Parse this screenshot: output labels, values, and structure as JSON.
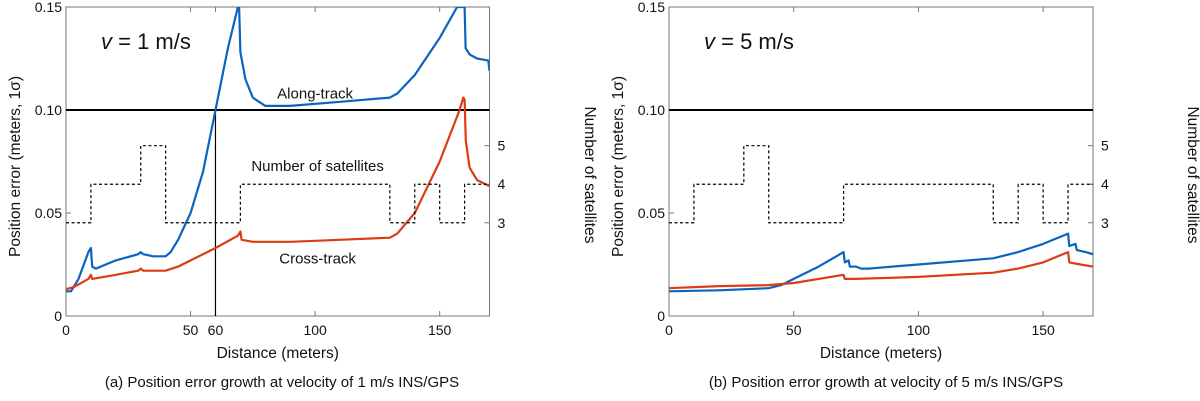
{
  "colors": {
    "along_track": "#0a64c0",
    "cross_track": "#dc3c14",
    "threshold": "#000000",
    "satellites": "#000000"
  },
  "chart_data": [
    {
      "type": "line",
      "panel": "a",
      "caption": "(a) Position error growth at velocity of 1 m/s INS/GPS",
      "velocity_label": {
        "italic": "v",
        "rest": " = 1 m/s"
      },
      "xlabel": "Distance (meters)",
      "ylabel": "Position error (meters, 1σ)",
      "y2label": "Number of satellites",
      "xlim": [
        0,
        170
      ],
      "ylim": [
        0,
        0.15
      ],
      "y2lim": [
        0.58,
        8.6
      ],
      "xticks": [
        0,
        50,
        60,
        100,
        150
      ],
      "yticks": [
        0,
        0.05,
        0.1,
        0.15
      ],
      "ytick_labels": [
        "0",
        "0.05",
        "0.10",
        "0.15"
      ],
      "y2ticks": [
        3,
        4,
        5
      ],
      "grid": false,
      "threshold": 0.1,
      "marker_x": 60,
      "annotations": {
        "along": "Along-track",
        "cross": "Cross-track",
        "sats": "Number of satellites"
      },
      "series": [
        {
          "name": "Along-track",
          "x": [
            0,
            2,
            5,
            9,
            10,
            10.5,
            12,
            20,
            29,
            30,
            31,
            35,
            40,
            42,
            45,
            50,
            55,
            60,
            65,
            69,
            69.5,
            70,
            72,
            75,
            80,
            90,
            110,
            130,
            133,
            140,
            150,
            157,
            160,
            160.4,
            162,
            165,
            169.5,
            170
          ],
          "y": [
            0.012,
            0.012,
            0.018,
            0.031,
            0.033,
            0.024,
            0.023,
            0.027,
            0.03,
            0.031,
            0.03,
            0.029,
            0.029,
            0.031,
            0.037,
            0.05,
            0.07,
            0.1,
            0.13,
            0.15,
            0.15,
            0.128,
            0.115,
            0.106,
            0.102,
            0.102,
            0.104,
            0.106,
            0.108,
            0.117,
            0.135,
            0.15,
            0.15,
            0.13,
            0.127,
            0.125,
            0.124,
            0.119
          ]
        },
        {
          "name": "Cross-track",
          "x": [
            0,
            3,
            9,
            10,
            10.5,
            20,
            29,
            30,
            31,
            40,
            45,
            50,
            60,
            69,
            70,
            70.5,
            75,
            90,
            110,
            130,
            133,
            140,
            150,
            158,
            159.5,
            160,
            160.5,
            162,
            165,
            170
          ],
          "y": [
            0.013,
            0.014,
            0.018,
            0.02,
            0.018,
            0.02,
            0.022,
            0.023,
            0.022,
            0.022,
            0.024,
            0.027,
            0.033,
            0.039,
            0.041,
            0.037,
            0.036,
            0.036,
            0.037,
            0.038,
            0.04,
            0.05,
            0.075,
            0.1,
            0.106,
            0.105,
            0.085,
            0.072,
            0.066,
            0.063
          ]
        },
        {
          "name": "Number of satellites",
          "axis": "right",
          "step": true,
          "x": [
            0,
            10,
            30,
            40,
            70,
            130,
            140,
            150,
            160,
            170
          ],
          "y": [
            3,
            4,
            5,
            3,
            4,
            3,
            4,
            3,
            4,
            4
          ]
        }
      ]
    },
    {
      "type": "line",
      "panel": "b",
      "caption": "(b) Position error growth at velocity of 5 m/s INS/GPS",
      "velocity_label": {
        "italic": "v",
        "rest": " = 5 m/s"
      },
      "xlabel": "Distance (meters)",
      "ylabel": "Position error (meters, 1σ)",
      "y2label": "Number of satellites",
      "xlim": [
        0,
        170
      ],
      "ylim": [
        0,
        0.15
      ],
      "y2lim": [
        0.58,
        8.6
      ],
      "xticks": [
        0,
        50,
        100,
        150
      ],
      "yticks": [
        0,
        0.05,
        0.1,
        0.15
      ],
      "ytick_labels": [
        "0",
        "0.05",
        "0.10",
        "0.15"
      ],
      "y2ticks": [
        3,
        4,
        5
      ],
      "grid": false,
      "threshold": 0.1,
      "series": [
        {
          "name": "Along-track",
          "x": [
            0,
            20,
            40,
            45,
            50,
            60,
            70,
            70.5,
            72,
            72.5,
            75,
            77,
            80,
            100,
            130,
            140,
            150,
            160,
            160.5,
            163,
            163.5,
            167,
            170
          ],
          "y": [
            0.012,
            0.0125,
            0.0135,
            0.015,
            0.018,
            0.024,
            0.031,
            0.026,
            0.027,
            0.024,
            0.024,
            0.023,
            0.023,
            0.025,
            0.028,
            0.031,
            0.035,
            0.04,
            0.034,
            0.035,
            0.032,
            0.031,
            0.03
          ]
        },
        {
          "name": "Cross-track",
          "x": [
            0,
            20,
            40,
            50,
            60,
            70,
            70.5,
            75,
            100,
            130,
            140,
            150,
            160,
            160.5,
            165,
            170
          ],
          "y": [
            0.0135,
            0.0145,
            0.015,
            0.016,
            0.018,
            0.02,
            0.018,
            0.018,
            0.019,
            0.021,
            0.023,
            0.026,
            0.031,
            0.026,
            0.025,
            0.024
          ]
        },
        {
          "name": "Number of satellites",
          "axis": "right",
          "step": true,
          "x": [
            0,
            10,
            30,
            40,
            70,
            130,
            140,
            150,
            160,
            170
          ],
          "y": [
            3,
            4,
            5,
            3,
            4,
            3,
            4,
            3,
            4,
            4
          ]
        }
      ]
    }
  ]
}
